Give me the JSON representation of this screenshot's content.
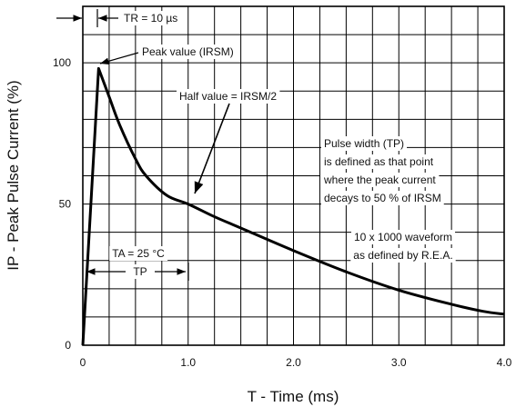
{
  "chart_data": {
    "type": "line",
    "xlabel": "T - Time (ms)",
    "ylabel": "IP - Peak Pulse Current (%)",
    "xlim": [
      0,
      4.0
    ],
    "ylim": [
      0,
      120
    ],
    "x_ticks": [
      "0",
      "1.0",
      "2.0",
      "3.0",
      "4.0"
    ],
    "y_ticks": [
      "0",
      "50",
      "100"
    ],
    "y_tick_values": [
      0,
      50,
      100
    ],
    "grid": true,
    "series": [
      {
        "x": [
          0,
          0.15,
          0.25,
          0.35,
          0.5,
          0.6,
          0.8,
          1.0,
          1.25,
          1.5,
          2.0,
          2.5,
          3.0,
          3.5,
          3.8,
          4.0
        ],
        "y": [
          0,
          98,
          88,
          78,
          66,
          60,
          53,
          50,
          45.5,
          41.5,
          33.5,
          26,
          19.5,
          14.5,
          12,
          11
        ]
      }
    ],
    "annotations": {
      "tr": "TR = 10 µs",
      "peak": "Peak value (IRSM)",
      "half": "Half value = IRSM/2",
      "pulse_width": [
        "Pulse width (TP)",
        "is defined as that point",
        "where the peak current",
        "decays to 50 % of IRSM"
      ],
      "waveform": [
        "10 x 1000 waveform",
        "as defined by R.E.A."
      ],
      "ta": "TA = 25 °C",
      "tp": "TP"
    }
  }
}
